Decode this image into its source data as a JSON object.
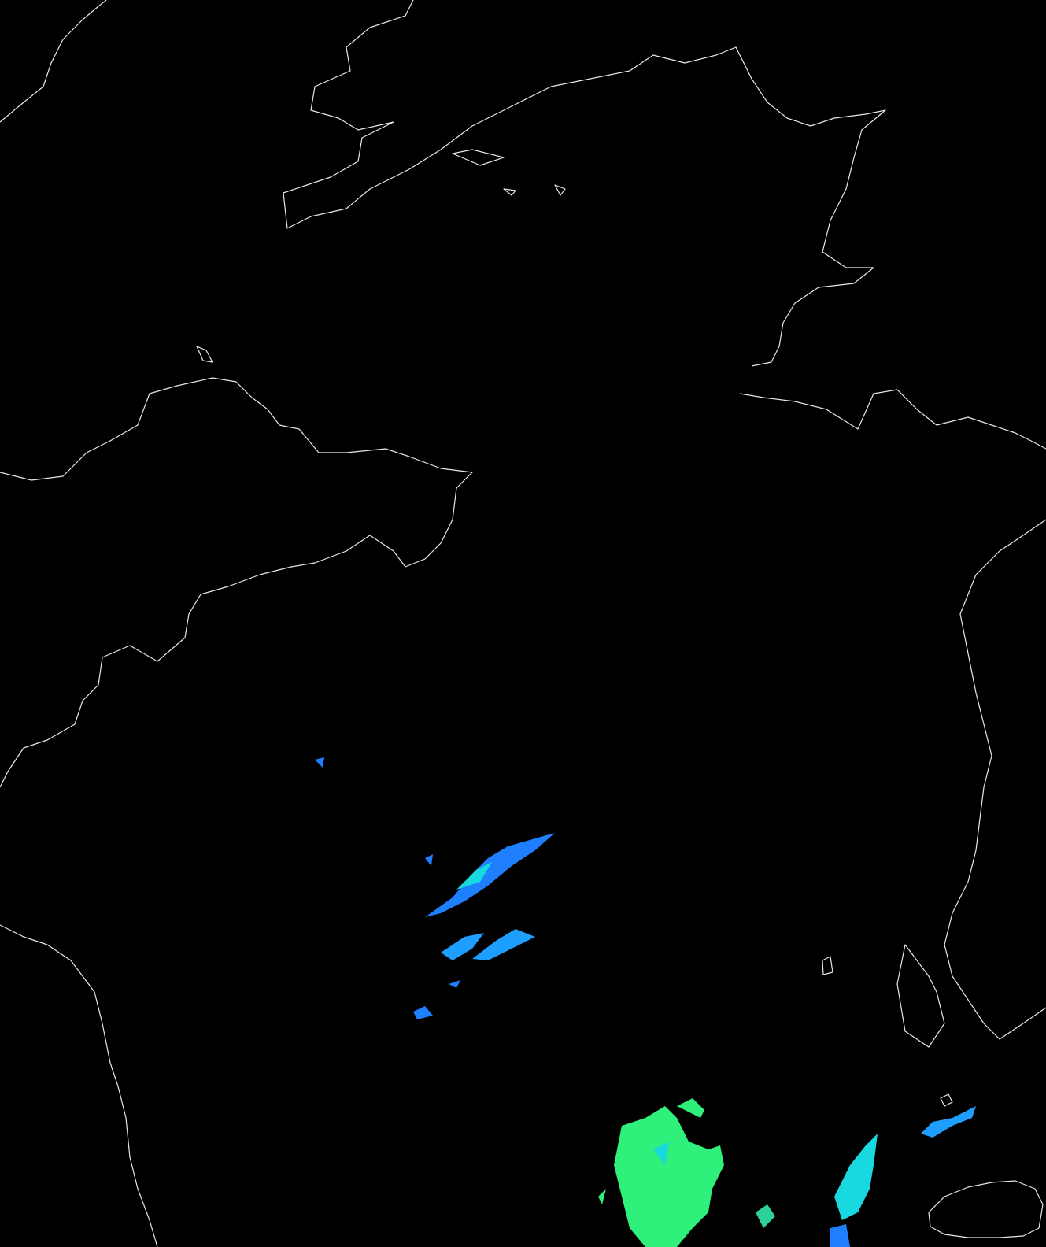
{
  "map": {
    "background_color": "#000000",
    "coastline_color": "#e8e8e8",
    "echo_colors": {
      "blue": "#1e7fff",
      "cyan": "#19d9e0",
      "green": "#2ef07a"
    },
    "layers": [
      "coastlines",
      "precipitation-echoes"
    ]
  }
}
